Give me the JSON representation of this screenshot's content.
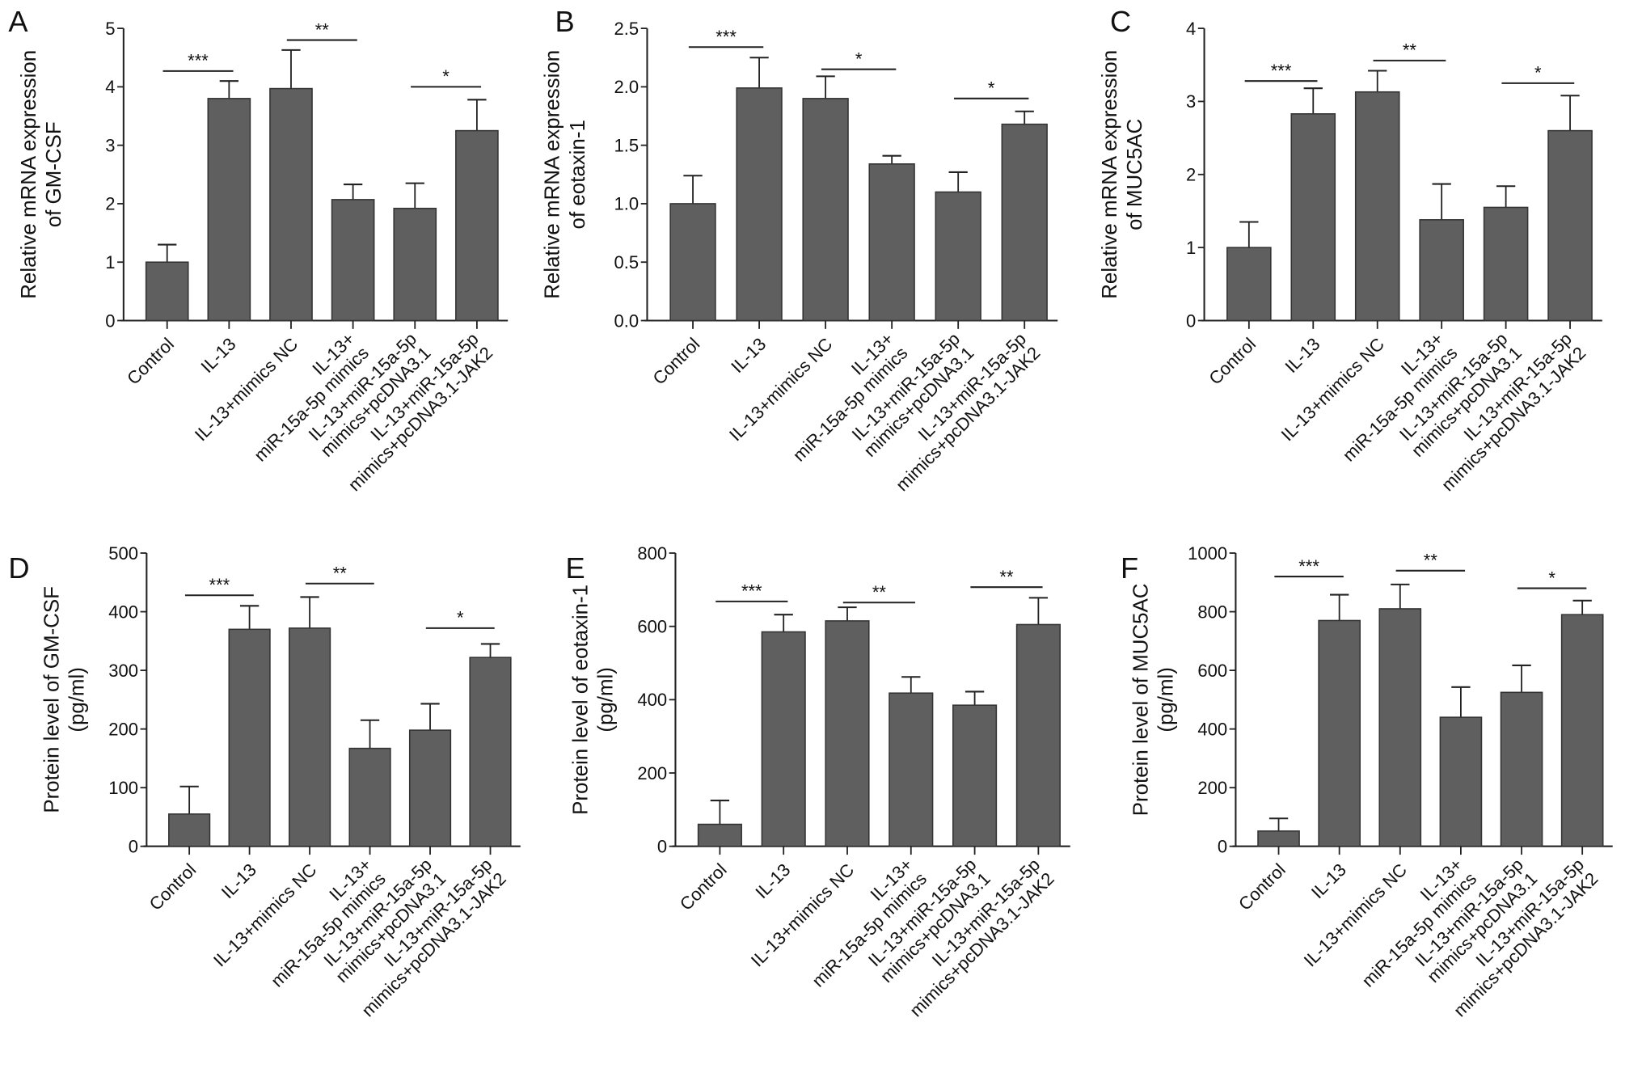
{
  "chart_data": [
    {
      "panel": "A",
      "type": "bar",
      "ylabel": [
        "Relative mRNA expression",
        "of GM-CSF"
      ],
      "ylim": [
        0,
        5
      ],
      "yticks": [
        "0",
        "1",
        "2",
        "3",
        "4",
        "5"
      ],
      "categories": [
        [
          "Control"
        ],
        [
          "IL-13"
        ],
        [
          "IL-13+mimics NC"
        ],
        [
          "IL-13+",
          "miR-15a-5p mimics"
        ],
        [
          "IL-13+miR-15a-5p",
          "mimics+pcDNA3.1"
        ],
        [
          "IL-13+miR-15a-5p",
          "mimics+pcDNA3.1-JAK2"
        ]
      ],
      "values": [
        1.0,
        3.8,
        3.97,
        2.07,
        1.92,
        3.25
      ],
      "error_upper": [
        1.3,
        4.1,
        4.63,
        2.33,
        2.35,
        3.78
      ],
      "significance": [
        {
          "from": 0,
          "to": 1,
          "y": 4.27,
          "label": "***"
        },
        {
          "from": 2,
          "to": 3,
          "y": 4.8,
          "label": "**"
        },
        {
          "from": 4,
          "to": 5,
          "y": 4.0,
          "label": "*"
        }
      ]
    },
    {
      "panel": "B",
      "type": "bar",
      "ylabel": [
        "Relative mRNA expression",
        "of eotaxin-1"
      ],
      "ylim": [
        0,
        2.5
      ],
      "yticks": [
        "0.0",
        "0.5",
        "1.0",
        "1.5",
        "2.0",
        "2.5"
      ],
      "categories": [
        [
          "Control"
        ],
        [
          "IL-13"
        ],
        [
          "IL-13+mimics NC"
        ],
        [
          "IL-13+",
          "miR-15a-5p mimics"
        ],
        [
          "IL-13+miR-15a-5p",
          "mimics+pcDNA3.1"
        ],
        [
          "IL-13+miR-15a-5p",
          "mimics+pcDNA3.1-JAK2"
        ]
      ],
      "values": [
        1.0,
        1.99,
        1.9,
        1.34,
        1.1,
        1.68
      ],
      "error_upper": [
        1.24,
        2.25,
        2.09,
        1.41,
        1.27,
        1.79
      ],
      "significance": [
        {
          "from": 0,
          "to": 1,
          "y": 2.34,
          "label": "***"
        },
        {
          "from": 2,
          "to": 3,
          "y": 2.15,
          "label": "*"
        },
        {
          "from": 4,
          "to": 5,
          "y": 1.9,
          "label": "*"
        }
      ]
    },
    {
      "panel": "C",
      "type": "bar",
      "ylabel": [
        "Relative mRNA expression",
        "of MUC5AC"
      ],
      "ylim": [
        0,
        4
      ],
      "yticks": [
        "0",
        "1",
        "2",
        "3",
        "4"
      ],
      "categories": [
        [
          "Control"
        ],
        [
          "IL-13"
        ],
        [
          "IL-13+mimics NC"
        ],
        [
          "IL-13+",
          "miR-15a-5p mimics"
        ],
        [
          "IL-13+miR-15a-5p",
          "mimics+pcDNA3.1"
        ],
        [
          "IL-13+miR-15a-5p",
          "mimics+pcDNA3.1-JAK2"
        ]
      ],
      "values": [
        1.0,
        2.83,
        3.13,
        1.38,
        1.55,
        2.6
      ],
      "error_upper": [
        1.35,
        3.18,
        3.42,
        1.87,
        1.84,
        3.08
      ],
      "significance": [
        {
          "from": 0,
          "to": 1,
          "y": 3.28,
          "label": "***"
        },
        {
          "from": 2,
          "to": 3,
          "y": 3.56,
          "label": "**"
        },
        {
          "from": 4,
          "to": 5,
          "y": 3.25,
          "label": "*"
        }
      ]
    },
    {
      "panel": "D",
      "type": "bar",
      "ylabel": [
        "Protein level of GM-CSF",
        "(pg/ml)"
      ],
      "ylim": [
        0,
        500
      ],
      "yticks": [
        "0",
        "100",
        "200",
        "300",
        "400",
        "500"
      ],
      "categories": [
        [
          "Control"
        ],
        [
          "IL-13"
        ],
        [
          "IL-13+mimics NC"
        ],
        [
          "IL-13+",
          "miR-15a-5p mimics"
        ],
        [
          "IL-13+miR-15a-5p",
          "mimics+pcDNA3.1"
        ],
        [
          "IL-13+miR-15a-5p",
          "mimics+pcDNA3.1-JAK2"
        ]
      ],
      "values": [
        55,
        370,
        372,
        167,
        198,
        322
      ],
      "error_upper": [
        102,
        410,
        425,
        215,
        243,
        345
      ],
      "significance": [
        {
          "from": 0,
          "to": 1,
          "y": 428,
          "label": "***"
        },
        {
          "from": 2,
          "to": 3,
          "y": 448,
          "label": "**"
        },
        {
          "from": 4,
          "to": 5,
          "y": 372,
          "label": "*"
        }
      ]
    },
    {
      "panel": "E",
      "type": "bar",
      "ylabel": [
        "Protein level  of eotaxin-1",
        "(pg/ml)"
      ],
      "ylim": [
        0,
        800
      ],
      "yticks": [
        "0",
        "200",
        "400",
        "600",
        "800"
      ],
      "categories": [
        [
          "Control"
        ],
        [
          "IL-13"
        ],
        [
          "IL-13+mimics NC"
        ],
        [
          "IL-13+",
          "miR-15a-5p mimics"
        ],
        [
          "IL-13+miR-15a-5p",
          "mimics+pcDNA3.1"
        ],
        [
          "IL-13+miR-15a-5p",
          "mimics+pcDNA3.1-JAK2"
        ]
      ],
      "values": [
        60,
        585,
        615,
        418,
        385,
        605
      ],
      "error_upper": [
        125,
        632,
        652,
        462,
        422,
        678
      ],
      "significance": [
        {
          "from": 0,
          "to": 1,
          "y": 668,
          "label": "***"
        },
        {
          "from": 2,
          "to": 3,
          "y": 665,
          "label": "**"
        },
        {
          "from": 4,
          "to": 5,
          "y": 707,
          "label": "**"
        }
      ]
    },
    {
      "panel": "F",
      "type": "bar",
      "ylabel": [
        "Protein level of MUC5AC",
        "(pg/ml)"
      ],
      "ylim": [
        0,
        1000
      ],
      "yticks": [
        "0",
        "200",
        "400",
        "600",
        "800",
        "1000"
      ],
      "categories": [
        [
          "Control"
        ],
        [
          "IL-13"
        ],
        [
          "IL-13+mimics NC"
        ],
        [
          "IL-13+",
          "miR-15a-5p mimics"
        ],
        [
          "IL-13+miR-15a-5p",
          "mimics+pcDNA3.1"
        ],
        [
          "IL-13+miR-15a-5p",
          "mimics+pcDNA3.1-JAK2"
        ]
      ],
      "values": [
        52,
        770,
        810,
        440,
        525,
        790
      ],
      "error_upper": [
        95,
        858,
        893,
        543,
        617,
        838
      ],
      "significance": [
        {
          "from": 0,
          "to": 1,
          "y": 920,
          "label": "***"
        },
        {
          "from": 2,
          "to": 3,
          "y": 940,
          "label": "**"
        },
        {
          "from": 4,
          "to": 5,
          "y": 880,
          "label": "*"
        }
      ]
    }
  ],
  "colors": {
    "bar": "#5f5f5f",
    "axis": "#222222"
  }
}
